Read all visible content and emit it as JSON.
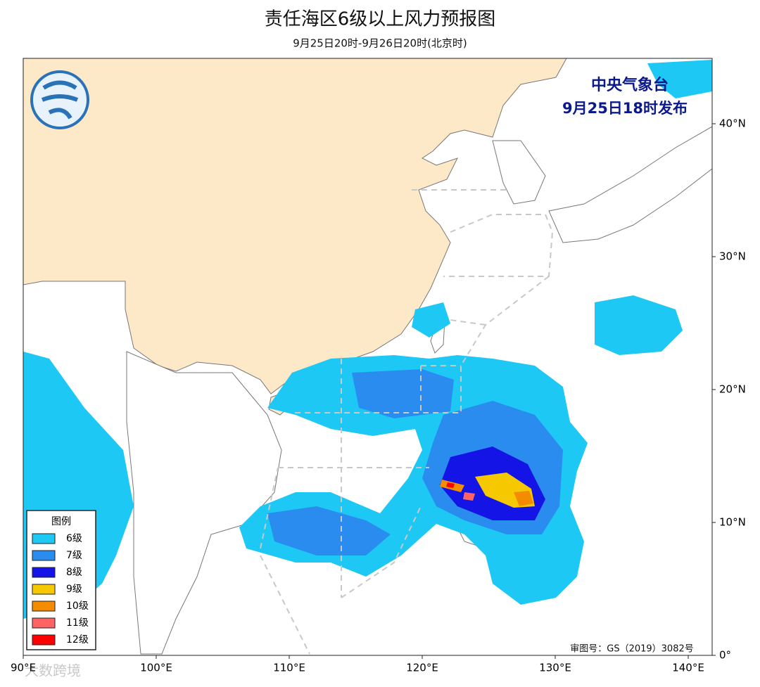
{
  "title": "责任海区6级以上风力预报图",
  "subtitle": "9月25日20时-9月26日20时(北京时)",
  "issuer": "中央气象台",
  "issue_time": "9月25日18时发布",
  "legend": {
    "title": "图例",
    "items": [
      {
        "label": "6级",
        "color": "#1ec8f5"
      },
      {
        "label": "7级",
        "color": "#2b8cf0"
      },
      {
        "label": "8级",
        "color": "#1414e6"
      },
      {
        "label": "9级",
        "color": "#f5c800"
      },
      {
        "label": "10级",
        "color": "#f58c00"
      },
      {
        "label": "11级",
        "color": "#ff6464"
      },
      {
        "label": "12级",
        "color": "#ff0000"
      }
    ]
  },
  "map": {
    "xticks": [
      {
        "value": 90,
        "label": "90°E"
      },
      {
        "value": 100,
        "label": "100°E"
      },
      {
        "value": 110,
        "label": "110°E"
      },
      {
        "value": 120,
        "label": "120°E"
      },
      {
        "value": 130,
        "label": "130°E"
      },
      {
        "value": 140,
        "label": "140°E"
      }
    ],
    "yticks": [
      {
        "value": 0,
        "label": "0°"
      },
      {
        "value": 10,
        "label": "10°N"
      },
      {
        "value": 20,
        "label": "20°N"
      },
      {
        "value": 30,
        "label": "30°N"
      },
      {
        "value": 40,
        "label": "40°N"
      }
    ]
  },
  "review_number": "审图号：GS（2019）3082号",
  "watermark": "大数跨境"
}
